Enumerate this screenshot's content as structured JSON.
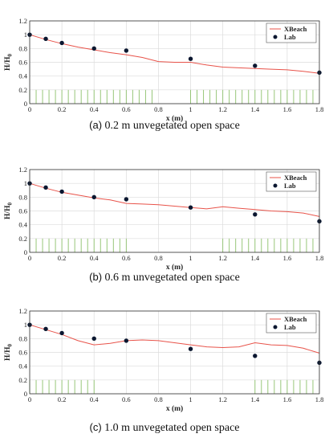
{
  "chart_data": [
    {
      "type": "line",
      "xlabel": "x (m)",
      "ylabel": "H/H",
      "ylabel_subscript": "0",
      "xlim": [
        0,
        1.8
      ],
      "ylim": [
        0,
        1.2
      ],
      "xticks": [
        "0",
        "0.2",
        "0.4",
        "0.6",
        "0.8",
        "1",
        "1.2",
        "1.4",
        "1.6",
        "1.8"
      ],
      "yticks": [
        "0",
        "0.2",
        "0.4",
        "0.6",
        "0.8",
        "1",
        "1.2"
      ],
      "grid": true,
      "legend_position": "top-right",
      "series": [
        {
          "name": "XBeach",
          "style": "line",
          "color": "#e8534a",
          "x": [
            0,
            0.1,
            0.2,
            0.3,
            0.4,
            0.5,
            0.6,
            0.7,
            0.8,
            0.9,
            1.0,
            1.1,
            1.2,
            1.3,
            1.4,
            1.5,
            1.6,
            1.7,
            1.8
          ],
          "y": [
            1.0,
            0.93,
            0.87,
            0.82,
            0.78,
            0.74,
            0.71,
            0.67,
            0.61,
            0.6,
            0.6,
            0.56,
            0.53,
            0.52,
            0.51,
            0.5,
            0.49,
            0.47,
            0.44
          ]
        },
        {
          "name": "Lab",
          "style": "marker",
          "color": "#0b1730",
          "x": [
            0,
            0.1,
            0.2,
            0.4,
            0.6,
            1.0,
            1.4,
            1.8
          ],
          "y": [
            1.0,
            0.94,
            0.88,
            0.8,
            0.77,
            0.65,
            0.55,
            0.45
          ]
        }
      ],
      "vegetation": {
        "color": "#8cc06a",
        "height": 0.2,
        "zones": [
          [
            0,
            0.77
          ],
          [
            1.0,
            1.77
          ]
        ]
      }
    },
    {
      "type": "line",
      "xlabel": "x (m)",
      "ylabel": "H/H",
      "ylabel_subscript": "0",
      "xlim": [
        0,
        1.8
      ],
      "ylim": [
        0,
        1.2
      ],
      "xticks": [
        "0",
        "0.2",
        "0.4",
        "0.6",
        "0.8",
        "1",
        "1.2",
        "1.4",
        "1.6",
        "1.8"
      ],
      "yticks": [
        "0",
        "0.2",
        "0.4",
        "0.6",
        "0.8",
        "1",
        "1.2"
      ],
      "grid": true,
      "legend_position": "top-right",
      "series": [
        {
          "name": "XBeach",
          "style": "line",
          "color": "#e8534a",
          "x": [
            0,
            0.1,
            0.2,
            0.3,
            0.4,
            0.5,
            0.6,
            0.7,
            0.8,
            0.9,
            1.0,
            1.1,
            1.2,
            1.3,
            1.4,
            1.5,
            1.6,
            1.7,
            1.8
          ],
          "y": [
            1.0,
            0.93,
            0.87,
            0.83,
            0.79,
            0.76,
            0.71,
            0.7,
            0.69,
            0.67,
            0.65,
            0.63,
            0.66,
            0.64,
            0.62,
            0.6,
            0.59,
            0.57,
            0.52
          ]
        },
        {
          "name": "Lab",
          "style": "marker",
          "color": "#0b1730",
          "x": [
            0,
            0.1,
            0.2,
            0.4,
            0.6,
            1.0,
            1.4,
            1.8
          ],
          "y": [
            1.0,
            0.94,
            0.88,
            0.8,
            0.77,
            0.65,
            0.55,
            0.45
          ]
        }
      ],
      "vegetation": {
        "color": "#8cc06a",
        "height": 0.2,
        "zones": [
          [
            0,
            0.6
          ],
          [
            1.2,
            1.77
          ]
        ]
      }
    },
    {
      "type": "line",
      "xlabel": "x (m)",
      "ylabel": "H/H",
      "ylabel_subscript": "0",
      "xlim": [
        0,
        1.8
      ],
      "ylim": [
        0,
        1.2
      ],
      "xticks": [
        "0",
        "0.2",
        "0.4",
        "0.6",
        "0.8",
        "1",
        "1.2",
        "1.4",
        "1.6",
        "1.8"
      ],
      "yticks": [
        "0",
        "0.2",
        "0.4",
        "0.6",
        "0.8",
        "1",
        "1.2"
      ],
      "grid": true,
      "legend_position": "top-right",
      "series": [
        {
          "name": "XBeach",
          "style": "line",
          "color": "#e8534a",
          "x": [
            0,
            0.1,
            0.2,
            0.3,
            0.4,
            0.5,
            0.6,
            0.7,
            0.8,
            0.9,
            1.0,
            1.1,
            1.2,
            1.3,
            1.4,
            1.5,
            1.6,
            1.7,
            1.8
          ],
          "y": [
            1.0,
            0.93,
            0.86,
            0.77,
            0.71,
            0.73,
            0.77,
            0.78,
            0.77,
            0.74,
            0.71,
            0.68,
            0.67,
            0.68,
            0.74,
            0.71,
            0.7,
            0.66,
            0.59
          ]
        },
        {
          "name": "Lab",
          "style": "marker",
          "color": "#0b1730",
          "x": [
            0,
            0.1,
            0.2,
            0.4,
            0.6,
            1.0,
            1.4,
            1.8
          ],
          "y": [
            1.0,
            0.94,
            0.88,
            0.8,
            0.77,
            0.65,
            0.55,
            0.45
          ]
        }
      ],
      "vegetation": {
        "color": "#8cc06a",
        "height": 0.2,
        "zones": [
          [
            0,
            0.4
          ],
          [
            1.4,
            1.77
          ]
        ]
      }
    }
  ],
  "captions": [
    {
      "tag": "(a)",
      "text": " 0.2 m unvegetated open space"
    },
    {
      "tag": "(b)",
      "text": " 0.6 m unvegetated open space"
    },
    {
      "tag": "(c)",
      "text": " 1.0 m unvegetated open space"
    }
  ]
}
